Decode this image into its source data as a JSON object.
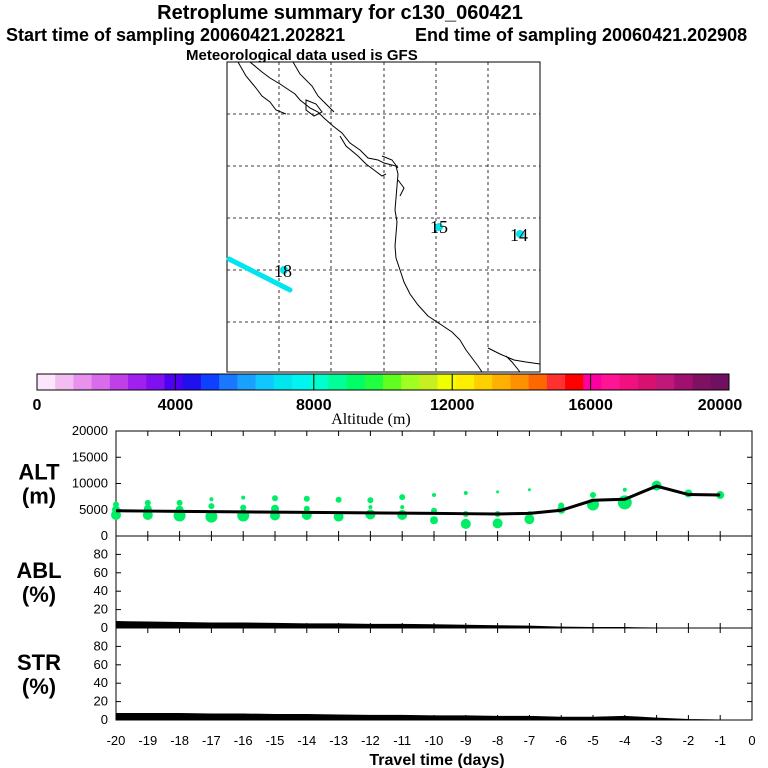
{
  "header": {
    "title": "Retroplume summary for c130_060421",
    "start_label": "Start time of sampling 20060421.202821",
    "end_label": "End time of sampling 20060421.202908",
    "met_label": "Meteorological data used is GFS"
  },
  "map": {
    "labels": [
      {
        "text": "15",
        "name": "map-label-15"
      },
      {
        "text": "14",
        "name": "map-label-14"
      },
      {
        "text": "18",
        "name": "map-label-18"
      }
    ],
    "track_color": "#00e5ee",
    "point_color": "#00e5ee"
  },
  "colorbar": {
    "title": "Altitude (m)",
    "ticks": [
      "0",
      "4000",
      "8000",
      "12000",
      "16000",
      "20000"
    ],
    "colors": [
      "#fce6fb",
      "#f2bdf1",
      "#e891ed",
      "#d96cea",
      "#c040e8",
      "#a020f0",
      "#8010f0",
      "#5000f0",
      "#2010f0",
      "#1040ff",
      "#1a78ff",
      "#1aa0ff",
      "#10c8ff",
      "#00e5ee",
      "#00f5f0",
      "#00ffcc",
      "#00ff99",
      "#00ff66",
      "#20ff40",
      "#60ff20",
      "#a0ff20",
      "#c8f020",
      "#f0ff00",
      "#ffee00",
      "#ffd000",
      "#ffb000",
      "#ff9000",
      "#ff6800",
      "#ff3030",
      "#ff0000",
      "#ff00a0",
      "#ff1493",
      "#f01080",
      "#d81070",
      "#c01878",
      "#a01070",
      "#801060",
      "#701060"
    ]
  },
  "chart_data": [
    {
      "type": "line",
      "name": "ALT",
      "title": "ALT",
      "ylabel": "(m)",
      "ylim": [
        0,
        20000
      ],
      "yticks": [
        "0",
        "5000",
        "10000",
        "15000",
        "20000"
      ],
      "x": [
        -20,
        -19,
        -18,
        -17,
        -16,
        -15,
        -14,
        -13,
        -12,
        -11,
        -10,
        -9,
        -8,
        -7,
        -6,
        -5,
        -4,
        -3,
        -2,
        -1
      ],
      "values": [
        4800,
        4750,
        4700,
        4650,
        4600,
        4550,
        4500,
        4450,
        4400,
        4350,
        4300,
        4250,
        4200,
        4300,
        4900,
        6800,
        7000,
        9500,
        7900,
        7800
      ],
      "line_color": "#000000",
      "scatter_color": "#00ee66",
      "scatter": [
        {
          "x": -20,
          "y": 4000,
          "s": 5
        },
        {
          "x": -20,
          "y": 5000,
          "s": 4
        },
        {
          "x": -20,
          "y": 6000,
          "s": 3
        },
        {
          "x": -19,
          "y": 4000,
          "s": 5
        },
        {
          "x": -19,
          "y": 5200,
          "s": 4
        },
        {
          "x": -19,
          "y": 6300,
          "s": 3
        },
        {
          "x": -18,
          "y": 3900,
          "s": 6
        },
        {
          "x": -18,
          "y": 5000,
          "s": 4
        },
        {
          "x": -18,
          "y": 6300,
          "s": 3
        },
        {
          "x": -17,
          "y": 3700,
          "s": 6
        },
        {
          "x": -17,
          "y": 5700,
          "s": 3
        },
        {
          "x": -17,
          "y": 7000,
          "s": 2
        },
        {
          "x": -16,
          "y": 3900,
          "s": 6
        },
        {
          "x": -16,
          "y": 5400,
          "s": 3
        },
        {
          "x": -16,
          "y": 7300,
          "s": 2
        },
        {
          "x": -15,
          "y": 3900,
          "s": 5
        },
        {
          "x": -15,
          "y": 5200,
          "s": 4
        },
        {
          "x": -15,
          "y": 7200,
          "s": 3
        },
        {
          "x": -14,
          "y": 4000,
          "s": 5
        },
        {
          "x": -14,
          "y": 5200,
          "s": 3
        },
        {
          "x": -14,
          "y": 7100,
          "s": 3
        },
        {
          "x": -13,
          "y": 3700,
          "s": 5
        },
        {
          "x": -13,
          "y": 6900,
          "s": 3
        },
        {
          "x": -12,
          "y": 4100,
          "s": 5
        },
        {
          "x": -12,
          "y": 6800,
          "s": 3
        },
        {
          "x": -12,
          "y": 5500,
          "s": 2
        },
        {
          "x": -11,
          "y": 4000,
          "s": 5
        },
        {
          "x": -11,
          "y": 7400,
          "s": 3
        },
        {
          "x": -11,
          "y": 5500,
          "s": 2
        },
        {
          "x": -10,
          "y": 3000,
          "s": 4
        },
        {
          "x": -10,
          "y": 4800,
          "s": 3
        },
        {
          "x": -10,
          "y": 7800,
          "s": 2
        },
        {
          "x": -9,
          "y": 2300,
          "s": 5
        },
        {
          "x": -9,
          "y": 4200,
          "s": 3
        },
        {
          "x": -9,
          "y": 8200,
          "s": 2
        },
        {
          "x": -8,
          "y": 2400,
          "s": 5
        },
        {
          "x": -8,
          "y": 4200,
          "s": 3
        },
        {
          "x": -8,
          "y": 8400,
          "s": 1.5
        },
        {
          "x": -7,
          "y": 3200,
          "s": 5
        },
        {
          "x": -7,
          "y": 4200,
          "s": 3
        },
        {
          "x": -7,
          "y": 8800,
          "s": 1.5
        },
        {
          "x": -6,
          "y": 5000,
          "s": 4
        },
        {
          "x": -6,
          "y": 5800,
          "s": 3
        },
        {
          "x": -5,
          "y": 6000,
          "s": 6
        },
        {
          "x": -5,
          "y": 7800,
          "s": 3
        },
        {
          "x": -4,
          "y": 6400,
          "s": 7
        },
        {
          "x": -4,
          "y": 8800,
          "s": 2
        },
        {
          "x": -3,
          "y": 9600,
          "s": 5
        },
        {
          "x": -2,
          "y": 8100,
          "s": 4
        },
        {
          "x": -1,
          "y": 7800,
          "s": 4
        }
      ]
    },
    {
      "type": "area",
      "name": "ABL",
      "title": "ABL",
      "ylabel": "(%)",
      "ylim": [
        0,
        100
      ],
      "yticks": [
        "0",
        "20",
        "40",
        "60",
        "80"
      ],
      "x": [
        -20,
        -19,
        -18,
        -17,
        -16,
        -15,
        -14,
        -13,
        -12,
        -11,
        -10,
        -9,
        -8,
        -7,
        -6,
        -5,
        -4,
        -3,
        -2,
        -1
      ],
      "values": [
        7,
        6.5,
        6,
        5.5,
        5.5,
        5,
        4.5,
        4.5,
        4,
        4,
        3.5,
        3,
        2.5,
        2,
        1,
        0.5,
        0.5,
        0,
        0,
        0
      ],
      "color": "#000000"
    },
    {
      "type": "area",
      "name": "STR",
      "title": "STR",
      "ylabel": "(%)",
      "ylim": [
        0,
        100
      ],
      "yticks": [
        "0",
        "20",
        "40",
        "60",
        "80"
      ],
      "x": [
        -20,
        -19,
        -18,
        -17,
        -16,
        -15,
        -14,
        -13,
        -12,
        -11,
        -10,
        -9,
        -8,
        -7,
        -6,
        -5,
        -4,
        -3,
        -2,
        -1
      ],
      "values": [
        7,
        7,
        7,
        6.5,
        6.5,
        6,
        6,
        5.5,
        5,
        5,
        4.5,
        4.5,
        4,
        4,
        3,
        3,
        4,
        2,
        0.5,
        0
      ],
      "color": "#000000"
    }
  ],
  "xaxis": {
    "label": "Travel time (days)",
    "ticks": [
      "-20",
      "-19",
      "-18",
      "-17",
      "-16",
      "-15",
      "-14",
      "-13",
      "-12",
      "-11",
      "-10",
      "-9",
      "-8",
      "-7",
      "-6",
      "-5",
      "-4",
      "-3",
      "-2",
      "-1",
      "0"
    ]
  }
}
